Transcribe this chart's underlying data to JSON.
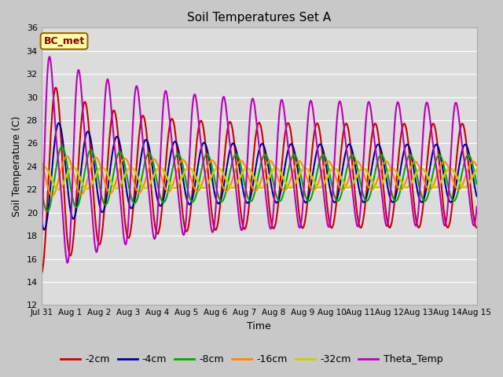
{
  "title": "Soil Temperatures Set A",
  "xlabel": "Time",
  "ylabel": "Soil Temperature (C)",
  "ylim": [
    12,
    36
  ],
  "yticks": [
    12,
    14,
    16,
    18,
    20,
    22,
    24,
    26,
    28,
    30,
    32,
    34,
    36
  ],
  "annotation": "BC_met",
  "fig_facecolor": "#c8c8c8",
  "plot_facecolor": "#dcdcdc",
  "series": [
    {
      "label": "-2cm",
      "color": "#cc0000",
      "lw": 1.5
    },
    {
      "label": "-4cm",
      "color": "#000099",
      "lw": 1.5
    },
    {
      "label": "-8cm",
      "color": "#00aa00",
      "lw": 1.5
    },
    {
      "label": "-16cm",
      "color": "#ff8800",
      "lw": 1.5
    },
    {
      "label": "-32cm",
      "color": "#cccc00",
      "lw": 2.0
    },
    {
      "label": "Theta_Temp",
      "color": "#bb00bb",
      "lw": 1.5
    }
  ],
  "n_days": 15,
  "tick_labels": [
    "Jul 31",
    "Aug 1",
    "Aug 2",
    "Aug 3",
    "Aug 4",
    "Aug 5",
    "Aug 6",
    "Aug 7",
    "Aug 8",
    "Aug 9",
    "Aug 10",
    "Aug 11",
    "Aug 12",
    "Aug 13",
    "Aug 14",
    "Aug 15"
  ]
}
